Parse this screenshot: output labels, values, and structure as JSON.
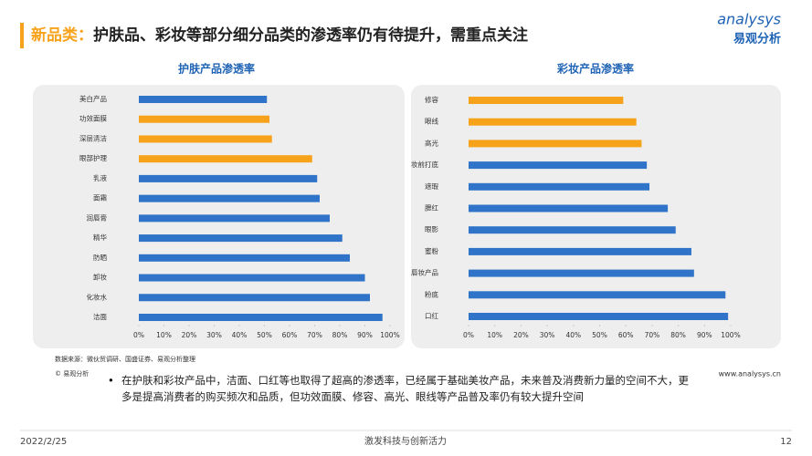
{
  "header": {
    "title_prefix": "新品类：",
    "title": "护肤品、彩妆等部分细分品类的渗透率仍有待提升，需重点关注",
    "logo": "analysys",
    "logo_cn": "易观分析"
  },
  "chart_data": [
    {
      "type": "barh",
      "title": "护肤产品渗透率",
      "categories": [
        "美白产品",
        "功效面膜",
        "深层清洁",
        "眼部护理",
        "乳液",
        "面霜",
        "润唇膏",
        "精华",
        "防晒",
        "卸妆",
        "化妆水",
        "洁面"
      ],
      "values": [
        51,
        52,
        53,
        69,
        71,
        72,
        76,
        81,
        84,
        90,
        92,
        97
      ],
      "colors": [
        "#2f74c8",
        "#f7a21b",
        "#f7a21b",
        "#f7a21b",
        "#2f74c8",
        "#2f74c8",
        "#2f74c8",
        "#2f74c8",
        "#2f74c8",
        "#2f74c8",
        "#2f74c8",
        "#2f74c8"
      ],
      "xlim": [
        0,
        100
      ],
      "xticks": [
        {
          "value": 0,
          "label": "0%"
        },
        {
          "value": 10,
          "label": "10%"
        },
        {
          "value": 20,
          "label": "20%"
        },
        {
          "value": 30,
          "label": "30%"
        },
        {
          "value": 40,
          "label": "40%"
        },
        {
          "value": 50,
          "label": "50%"
        },
        {
          "value": 60,
          "label": "60%"
        },
        {
          "value": 70,
          "label": "70%"
        },
        {
          "value": 80,
          "label": "80%"
        },
        {
          "value": 90,
          "label": "90%"
        },
        {
          "value": 100,
          "label": "100%"
        }
      ]
    },
    {
      "type": "barh",
      "title": "彩妆产品渗透率",
      "categories": [
        "修容",
        "眼线",
        "高光",
        "妆前打底",
        "遮瑕",
        "腮红",
        "眼影",
        "蜜粉",
        "唇妆产品",
        "粉底",
        "口红"
      ],
      "values": [
        59,
        64,
        66,
        68,
        69,
        76,
        79,
        85,
        86,
        98,
        99
      ],
      "colors": [
        "#f7a21b",
        "#f7a21b",
        "#f7a21b",
        "#2f74c8",
        "#2f74c8",
        "#2f74c8",
        "#2f74c8",
        "#2f74c8",
        "#2f74c8",
        "#2f74c8",
        "#2f74c8"
      ],
      "xlim": [
        0,
        100
      ],
      "xticks": [
        {
          "value": 0,
          "label": "0%"
        },
        {
          "value": 10,
          "label": "10%"
        },
        {
          "value": 20,
          "label": "20%"
        },
        {
          "value": 30,
          "label": "30%"
        },
        {
          "value": 40,
          "label": "40%"
        },
        {
          "value": 50,
          "label": "50%"
        },
        {
          "value": 60,
          "label": "60%"
        },
        {
          "value": 70,
          "label": "70%"
        },
        {
          "value": 80,
          "label": "80%"
        },
        {
          "value": 90,
          "label": "90%"
        },
        {
          "value": 100,
          "label": "100%"
        }
      ]
    }
  ],
  "source": "数据来源：微伙贸调研、国盛证券、易观分析整理",
  "copyright": "© 易观分析",
  "website": "www.analysys.cn",
  "bullet": "在护肤和彩妆产品中，洁面、口红等也取得了超高的渗透率，已经属于基础美妆产品，未来普及消费新力量的空间不大，更多是提高消费者的购买频次和品质，但功效面膜、修容、高光、眼线等产品普及率仍有较大提升空间",
  "footer": {
    "date": "2022/2/25",
    "slogan": "激发科技与创新活力",
    "page": "12"
  }
}
